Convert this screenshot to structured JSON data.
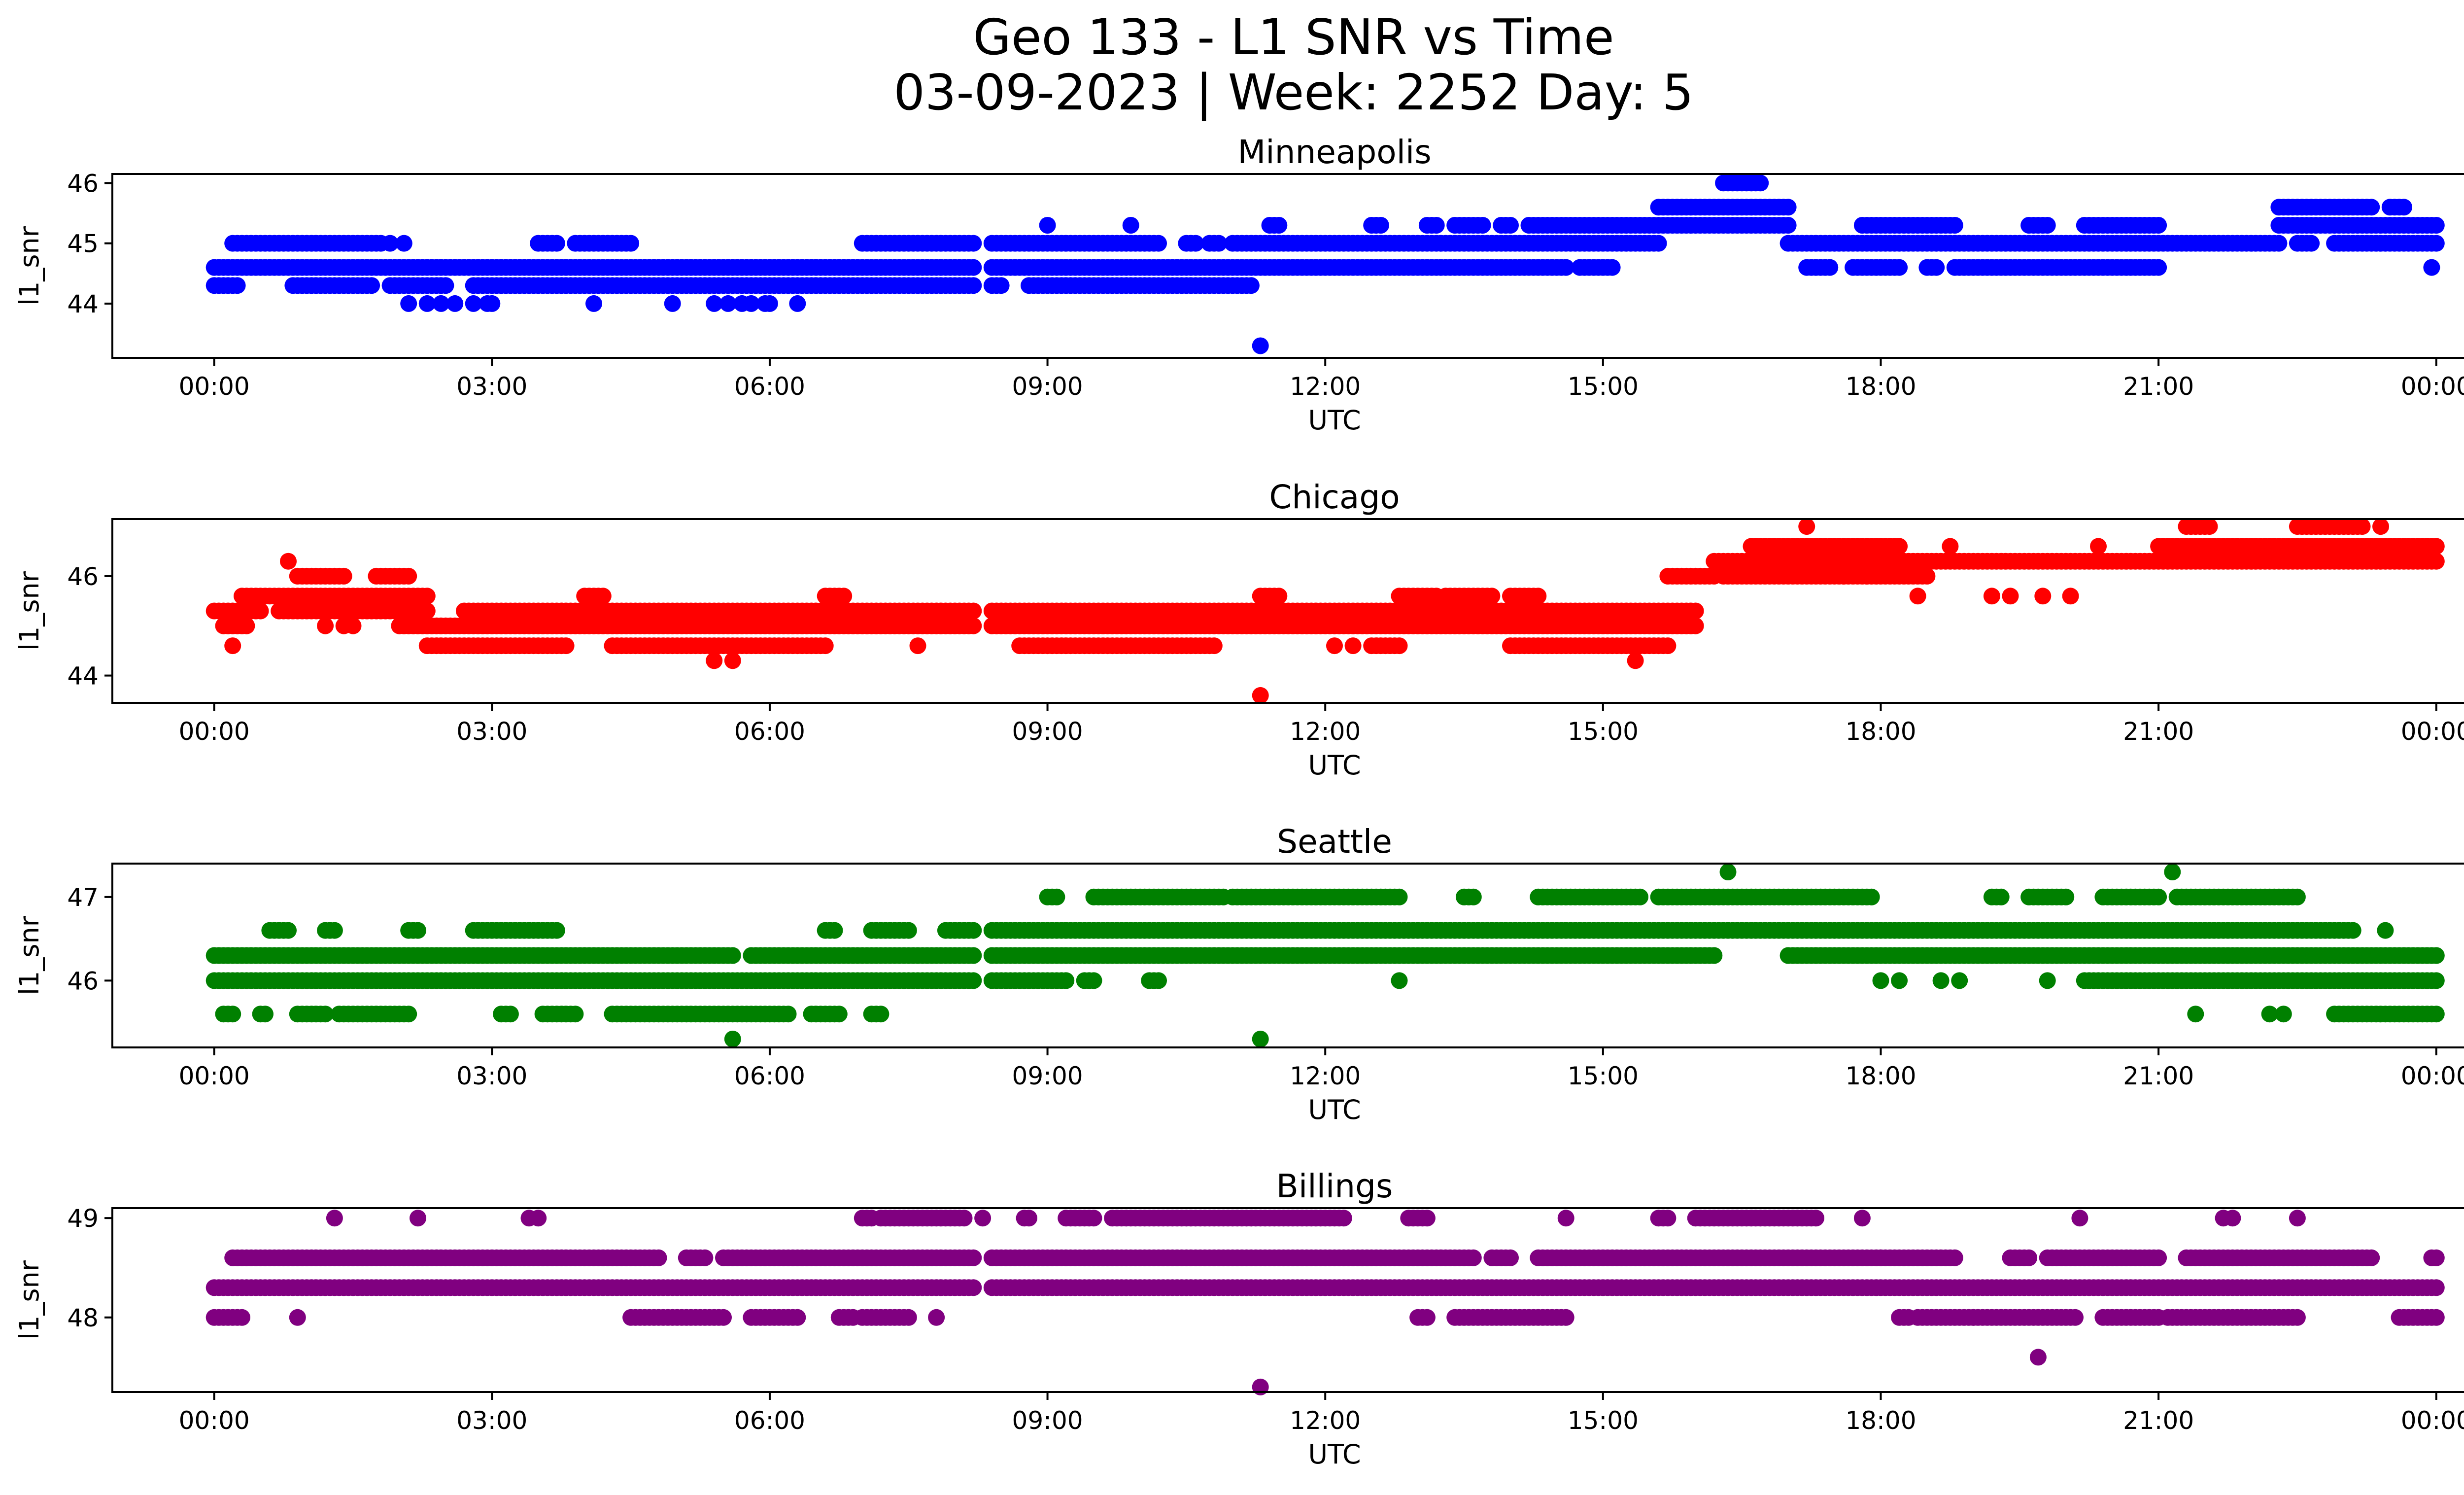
{
  "figure": {
    "title_line1": "Geo 133 - L1 SNR vs Time",
    "title_line2": "03-09-2023 | Week: 2252 Day: 5"
  },
  "chart_data": [
    {
      "type": "scatter",
      "title": "Minneapolis",
      "xlabel": "UTC",
      "ylabel": "l1_snr",
      "color": "#0000ff",
      "xlim": [
        -1.1,
        25.3
      ],
      "ylim": [
        43.1,
        46.15
      ],
      "x_ticks": [
        "00:00",
        "03:00",
        "06:00",
        "09:00",
        "12:00",
        "15:00",
        "18:00",
        "21:00",
        "00:00"
      ],
      "y_ticks": [
        44,
        45,
        46
      ],
      "bands": [
        {
          "y": 44.3,
          "ranges": [
            [
              0.0,
              0.25
            ],
            [
              0.85,
              1.7
            ],
            [
              1.9,
              2.5
            ],
            [
              2.8,
              8.2
            ],
            [
              8.4,
              8.5
            ],
            [
              8.8,
              11.2
            ]
          ]
        },
        {
          "y": 44.6,
          "ranges": [
            [
              0.0,
              8.2
            ],
            [
              8.4,
              14.6
            ],
            [
              14.75,
              15.1
            ],
            [
              17.2,
              17.45
            ],
            [
              17.7,
              18.2
            ],
            [
              18.5,
              18.6
            ],
            [
              18.8,
              21.0
            ]
          ]
        },
        {
          "y": 45.0,
          "ranges": [
            [
              0.2,
              1.8
            ],
            [
              3.5,
              3.7
            ],
            [
              3.9,
              4.5
            ],
            [
              7.0,
              8.2
            ],
            [
              8.4,
              10.2
            ],
            [
              10.5,
              10.6
            ],
            [
              10.75,
              10.85
            ],
            [
              11.0,
              15.6
            ],
            [
              17.0,
              22.3
            ],
            [
              22.5,
              22.65
            ],
            [
              22.9,
              24.0
            ]
          ]
        },
        {
          "y": 45.3,
          "ranges": [
            [
              11.4,
              11.5
            ],
            [
              12.5,
              12.6
            ],
            [
              13.1,
              13.2
            ],
            [
              13.4,
              13.7
            ],
            [
              13.9,
              14.0
            ],
            [
              14.2,
              17.0
            ],
            [
              17.8,
              18.8
            ],
            [
              19.6,
              19.8
            ],
            [
              20.2,
              21.0
            ],
            [
              22.3,
              24.0
            ]
          ]
        },
        {
          "y": 45.6,
          "ranges": [
            [
              15.6,
              17.0
            ],
            [
              22.3,
              23.3
            ],
            [
              23.5,
              23.65
            ]
          ]
        },
        {
          "y": 46.0,
          "ranges": [
            [
              16.3,
              16.7
            ]
          ]
        }
      ],
      "points": [
        {
          "x": 1.9,
          "y": 45.0
        },
        {
          "x": 2.05,
          "y": 45.0
        },
        {
          "x": 2.1,
          "y": 44.0
        },
        {
          "x": 2.3,
          "y": 44.0
        },
        {
          "x": 2.45,
          "y": 44.0
        },
        {
          "x": 2.6,
          "y": 44.0
        },
        {
          "x": 2.8,
          "y": 44.0
        },
        {
          "x": 2.95,
          "y": 44.0
        },
        {
          "x": 3.0,
          "y": 44.0
        },
        {
          "x": 4.1,
          "y": 44.0
        },
        {
          "x": 4.95,
          "y": 44.0
        },
        {
          "x": 5.4,
          "y": 44.0
        },
        {
          "x": 5.55,
          "y": 44.0
        },
        {
          "x": 5.7,
          "y": 44.0
        },
        {
          "x": 5.8,
          "y": 44.0
        },
        {
          "x": 5.95,
          "y": 44.0
        },
        {
          "x": 6.0,
          "y": 44.0
        },
        {
          "x": 6.3,
          "y": 44.0
        },
        {
          "x": 9.0,
          "y": 45.3
        },
        {
          "x": 9.9,
          "y": 45.3
        },
        {
          "x": 11.3,
          "y": 43.3
        },
        {
          "x": 23.95,
          "y": 44.6
        }
      ]
    },
    {
      "type": "scatter",
      "title": "Chicago",
      "xlabel": "UTC",
      "ylabel": "l1_snr",
      "color": "#ff0000",
      "xlim": [
        -1.1,
        25.3
      ],
      "ylim": [
        43.45,
        47.15
      ],
      "x_ticks": [
        "00:00",
        "03:00",
        "06:00",
        "09:00",
        "12:00",
        "15:00",
        "18:00",
        "21:00",
        "00:00"
      ],
      "y_ticks": [
        44,
        46
      ],
      "bands": [
        {
          "y": 44.6,
          "ranges": [
            [
              2.3,
              3.8
            ],
            [
              4.3,
              6.6
            ],
            [
              8.7,
              10.8
            ],
            [
              12.5,
              12.8
            ],
            [
              14.0,
              15.7
            ]
          ]
        },
        {
          "y": 45.0,
          "ranges": [
            [
              0.1,
              0.35
            ],
            [
              2.0,
              8.2
            ],
            [
              8.4,
              16.0
            ]
          ]
        },
        {
          "y": 45.3,
          "ranges": [
            [
              0.0,
              0.5
            ],
            [
              0.7,
              2.3
            ],
            [
              2.7,
              8.2
            ],
            [
              8.4,
              16.0
            ]
          ]
        },
        {
          "y": 45.6,
          "ranges": [
            [
              0.3,
              2.3
            ],
            [
              4.0,
              4.2
            ],
            [
              6.6,
              6.8
            ],
            [
              11.3,
              11.5
            ],
            [
              12.8,
              13.2
            ],
            [
              13.3,
              13.8
            ],
            [
              14.0,
              14.3
            ]
          ]
        },
        {
          "y": 46.0,
          "ranges": [
            [
              0.9,
              1.4
            ],
            [
              1.75,
              2.1
            ],
            [
              15.7,
              16.2
            ],
            [
              16.3,
              18.5
            ]
          ]
        },
        {
          "y": 46.3,
          "ranges": [
            [
              16.2,
              24.0
            ]
          ]
        },
        {
          "y": 46.6,
          "ranges": [
            [
              16.6,
              18.2
            ],
            [
              21.0,
              24.0
            ]
          ]
        },
        {
          "y": 47.0,
          "ranges": [
            [
              21.3,
              21.55
            ],
            [
              22.5,
              23.2
            ]
          ]
        }
      ],
      "points": [
        {
          "x": 0.8,
          "y": 46.3
        },
        {
          "x": 0.2,
          "y": 44.6
        },
        {
          "x": 1.2,
          "y": 45.0
        },
        {
          "x": 1.4,
          "y": 45.0
        },
        {
          "x": 1.5,
          "y": 45.0
        },
        {
          "x": 5.4,
          "y": 44.3
        },
        {
          "x": 5.6,
          "y": 44.3
        },
        {
          "x": 7.6,
          "y": 44.6
        },
        {
          "x": 11.3,
          "y": 43.6
        },
        {
          "x": 12.1,
          "y": 44.6
        },
        {
          "x": 12.3,
          "y": 44.6
        },
        {
          "x": 15.35,
          "y": 44.3
        },
        {
          "x": 17.2,
          "y": 47.0
        },
        {
          "x": 17.6,
          "y": 46.0
        },
        {
          "x": 17.85,
          "y": 46.0
        },
        {
          "x": 18.4,
          "y": 45.6
        },
        {
          "x": 18.75,
          "y": 46.6
        },
        {
          "x": 19.2,
          "y": 45.6
        },
        {
          "x": 19.4,
          "y": 45.6
        },
        {
          "x": 19.75,
          "y": 45.6
        },
        {
          "x": 20.05,
          "y": 45.6
        },
        {
          "x": 20.35,
          "y": 46.6
        },
        {
          "x": 23.4,
          "y": 47.0
        }
      ]
    },
    {
      "type": "scatter",
      "title": "Seattle",
      "xlabel": "UTC",
      "ylabel": "l1_snr",
      "color": "#008000",
      "xlim": [
        -1.1,
        25.3
      ],
      "ylim": [
        45.2,
        47.4
      ],
      "x_ticks": [
        "00:00",
        "03:00",
        "06:00",
        "09:00",
        "12:00",
        "15:00",
        "18:00",
        "21:00",
        "00:00"
      ],
      "y_ticks": [
        46,
        47
      ],
      "bands": [
        {
          "y": 45.6,
          "ranges": [
            [
              0.1,
              0.2
            ],
            [
              0.5,
              0.55
            ],
            [
              0.9,
              1.2
            ],
            [
              1.35,
              2.1
            ],
            [
              3.1,
              3.2
            ],
            [
              3.55,
              3.9
            ],
            [
              4.3,
              6.2
            ],
            [
              6.45,
              6.75
            ],
            [
              7.1,
              7.2
            ],
            [
              22.9,
              24.0
            ]
          ]
        },
        {
          "y": 46.0,
          "ranges": [
            [
              0.0,
              8.2
            ],
            [
              8.4,
              9.2
            ],
            [
              9.4,
              9.5
            ],
            [
              10.1,
              10.2
            ],
            [
              20.2,
              24.0
            ]
          ]
        },
        {
          "y": 46.3,
          "ranges": [
            [
              0.0,
              5.6
            ],
            [
              5.8,
              8.2
            ],
            [
              8.4,
              16.2
            ],
            [
              17.0,
              24.0
            ]
          ]
        },
        {
          "y": 46.6,
          "ranges": [
            [
              0.6,
              0.8
            ],
            [
              1.2,
              1.3
            ],
            [
              2.1,
              2.2
            ],
            [
              2.8,
              3.7
            ],
            [
              6.6,
              6.7
            ],
            [
              7.1,
              7.5
            ],
            [
              7.9,
              8.2
            ],
            [
              8.4,
              23.1
            ]
          ]
        },
        {
          "y": 47.0,
          "ranges": [
            [
              9.0,
              9.1
            ],
            [
              9.5,
              10.9
            ],
            [
              11.0,
              12.8
            ],
            [
              13.5,
              13.6
            ],
            [
              14.3,
              15.4
            ],
            [
              15.6,
              17.9
            ],
            [
              19.2,
              19.3
            ],
            [
              19.6,
              20.0
            ],
            [
              20.4,
              21.0
            ],
            [
              21.2,
              22.5
            ]
          ]
        },
        {
          "y": 47.3,
          "ranges": [
            [
              16.35,
              16.35
            ],
            [
              21.15,
              21.15
            ]
          ]
        }
      ],
      "points": [
        {
          "x": 5.6,
          "y": 45.3
        },
        {
          "x": 11.3,
          "y": 45.3
        },
        {
          "x": 12.8,
          "y": 46.0
        },
        {
          "x": 18.0,
          "y": 46.0
        },
        {
          "x": 18.2,
          "y": 46.0
        },
        {
          "x": 18.65,
          "y": 46.0
        },
        {
          "x": 18.85,
          "y": 46.0
        },
        {
          "x": 19.8,
          "y": 46.0
        },
        {
          "x": 21.4,
          "y": 45.6
        },
        {
          "x": 22.2,
          "y": 45.6
        },
        {
          "x": 22.35,
          "y": 45.6
        },
        {
          "x": 23.45,
          "y": 46.6
        }
      ]
    },
    {
      "type": "scatter",
      "title": "Billings",
      "xlabel": "UTC",
      "ylabel": "l1_snr",
      "color": "#800080",
      "xlim": [
        -1.1,
        25.3
      ],
      "ylim": [
        47.25,
        49.1
      ],
      "x_ticks": [
        "00:00",
        "03:00",
        "06:00",
        "09:00",
        "12:00",
        "15:00",
        "18:00",
        "21:00",
        "00:00"
      ],
      "y_ticks": [
        48,
        49
      ],
      "bands": [
        {
          "y": 48.0,
          "ranges": [
            [
              0.0,
              0.3
            ],
            [
              4.5,
              5.5
            ],
            [
              5.8,
              6.3
            ],
            [
              6.75,
              6.9
            ],
            [
              7.0,
              7.5
            ],
            [
              13.0,
              13.1
            ],
            [
              13.4,
              14.6
            ],
            [
              18.2,
              18.3
            ],
            [
              18.4,
              20.1
            ],
            [
              20.4,
              21.0
            ],
            [
              21.1,
              22.5
            ],
            [
              23.6,
              24.0
            ]
          ]
        },
        {
          "y": 48.3,
          "ranges": [
            [
              0.0,
              8.2
            ],
            [
              8.4,
              24.0
            ]
          ]
        },
        {
          "y": 48.6,
          "ranges": [
            [
              0.2,
              4.8
            ],
            [
              5.1,
              5.3
            ],
            [
              5.5,
              8.2
            ],
            [
              8.4,
              13.6
            ],
            [
              13.8,
              14.0
            ],
            [
              14.3,
              18.8
            ],
            [
              19.4,
              19.6
            ],
            [
              19.8,
              21.0
            ],
            [
              21.3,
              23.3
            ],
            [
              23.95,
              24.0
            ]
          ]
        },
        {
          "y": 49.0,
          "ranges": [
            [
              7.0,
              7.1
            ],
            [
              7.2,
              8.1
            ],
            [
              8.75,
              8.8
            ],
            [
              9.2,
              9.5
            ],
            [
              9.7,
              12.2
            ],
            [
              12.9,
              13.1
            ],
            [
              15.6,
              15.7
            ],
            [
              16.0,
              17.3
            ]
          ]
        }
      ],
      "points": [
        {
          "x": 0.9,
          "y": 48.0
        },
        {
          "x": 7.8,
          "y": 48.0
        },
        {
          "x": 18.0,
          "y": 48.6
        },
        {
          "x": 19.0,
          "y": 48.0
        },
        {
          "x": 19.7,
          "y": 47.6
        },
        {
          "x": 11.3,
          "y": 47.3
        },
        {
          "x": 1.3,
          "y": 49.0
        },
        {
          "x": 2.2,
          "y": 49.0
        },
        {
          "x": 3.4,
          "y": 49.0
        },
        {
          "x": 3.5,
          "y": 49.0
        },
        {
          "x": 8.3,
          "y": 49.0
        },
        {
          "x": 14.6,
          "y": 49.0
        },
        {
          "x": 17.8,
          "y": 49.0
        },
        {
          "x": 20.15,
          "y": 49.0
        },
        {
          "x": 21.7,
          "y": 49.0
        },
        {
          "x": 21.8,
          "y": 49.0
        },
        {
          "x": 22.5,
          "y": 49.0
        }
      ]
    }
  ]
}
